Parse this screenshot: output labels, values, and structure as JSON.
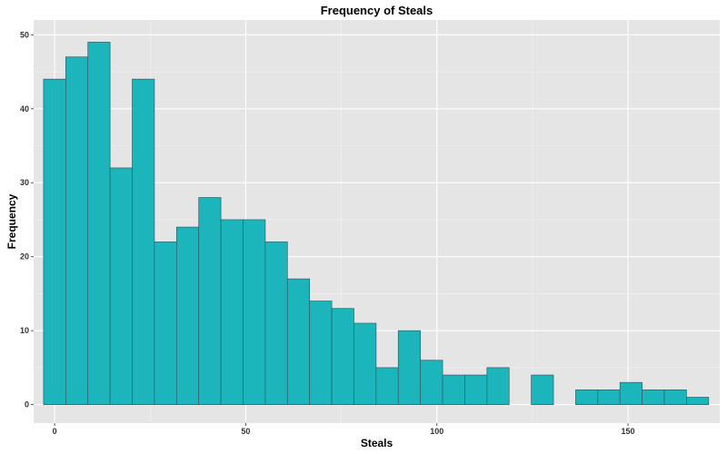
{
  "chart_data": {
    "type": "bar",
    "title": "Frequency of Steals",
    "xlabel": "Steals",
    "ylabel": "Frequency",
    "xlim": [
      -5.5,
      174
    ],
    "ylim": [
      -2.5,
      52
    ],
    "xticks": [
      0,
      50,
      100,
      150
    ],
    "xtick_labels": [
      "0",
      "50",
      "100",
      "150"
    ],
    "yticks": [
      0,
      10,
      20,
      30,
      40,
      50
    ],
    "ytick_labels": [
      "0",
      "10",
      "20",
      "30",
      "40",
      "50"
    ],
    "grid": true,
    "legend": "none",
    "bins": [
      {
        "x_start": -2.9,
        "x_end": 2.9,
        "value": 44
      },
      {
        "x_start": 2.9,
        "x_end": 8.7,
        "value": 47
      },
      {
        "x_start": 8.7,
        "x_end": 14.5,
        "value": 49
      },
      {
        "x_start": 14.5,
        "x_end": 20.3,
        "value": 32
      },
      {
        "x_start": 20.3,
        "x_end": 26.1,
        "value": 44
      },
      {
        "x_start": 26.1,
        "x_end": 31.9,
        "value": 22
      },
      {
        "x_start": 31.9,
        "x_end": 37.7,
        "value": 24
      },
      {
        "x_start": 37.7,
        "x_end": 43.5,
        "value": 28
      },
      {
        "x_start": 43.5,
        "x_end": 49.3,
        "value": 25
      },
      {
        "x_start": 49.3,
        "x_end": 55.1,
        "value": 25
      },
      {
        "x_start": 55.1,
        "x_end": 60.9,
        "value": 22
      },
      {
        "x_start": 60.9,
        "x_end": 66.7,
        "value": 17
      },
      {
        "x_start": 66.7,
        "x_end": 72.5,
        "value": 14
      },
      {
        "x_start": 72.5,
        "x_end": 78.3,
        "value": 13
      },
      {
        "x_start": 78.3,
        "x_end": 84.1,
        "value": 11
      },
      {
        "x_start": 84.1,
        "x_end": 89.9,
        "value": 5
      },
      {
        "x_start": 89.9,
        "x_end": 95.7,
        "value": 10
      },
      {
        "x_start": 95.7,
        "x_end": 101.5,
        "value": 6
      },
      {
        "x_start": 101.5,
        "x_end": 107.3,
        "value": 4
      },
      {
        "x_start": 107.3,
        "x_end": 113.1,
        "value": 4
      },
      {
        "x_start": 113.1,
        "x_end": 118.9,
        "value": 5
      },
      {
        "x_start": 118.9,
        "x_end": 124.7,
        "value": 0
      },
      {
        "x_start": 124.7,
        "x_end": 130.5,
        "value": 4
      },
      {
        "x_start": 130.5,
        "x_end": 136.3,
        "value": 0
      },
      {
        "x_start": 136.3,
        "x_end": 142.1,
        "value": 2
      },
      {
        "x_start": 142.1,
        "x_end": 147.9,
        "value": 2
      },
      {
        "x_start": 147.9,
        "x_end": 153.7,
        "value": 3
      },
      {
        "x_start": 153.7,
        "x_end": 159.5,
        "value": 2
      },
      {
        "x_start": 159.5,
        "x_end": 165.3,
        "value": 2
      },
      {
        "x_start": 165.3,
        "x_end": 171.1,
        "value": 1
      }
    ],
    "colors": {
      "bar_fill": "#1cb5bb",
      "bar_stroke": "#2f5f66",
      "panel_background": "#e5e5e5",
      "major_grid": "#ffffff",
      "minor_grid": "#f2f2f2"
    }
  }
}
